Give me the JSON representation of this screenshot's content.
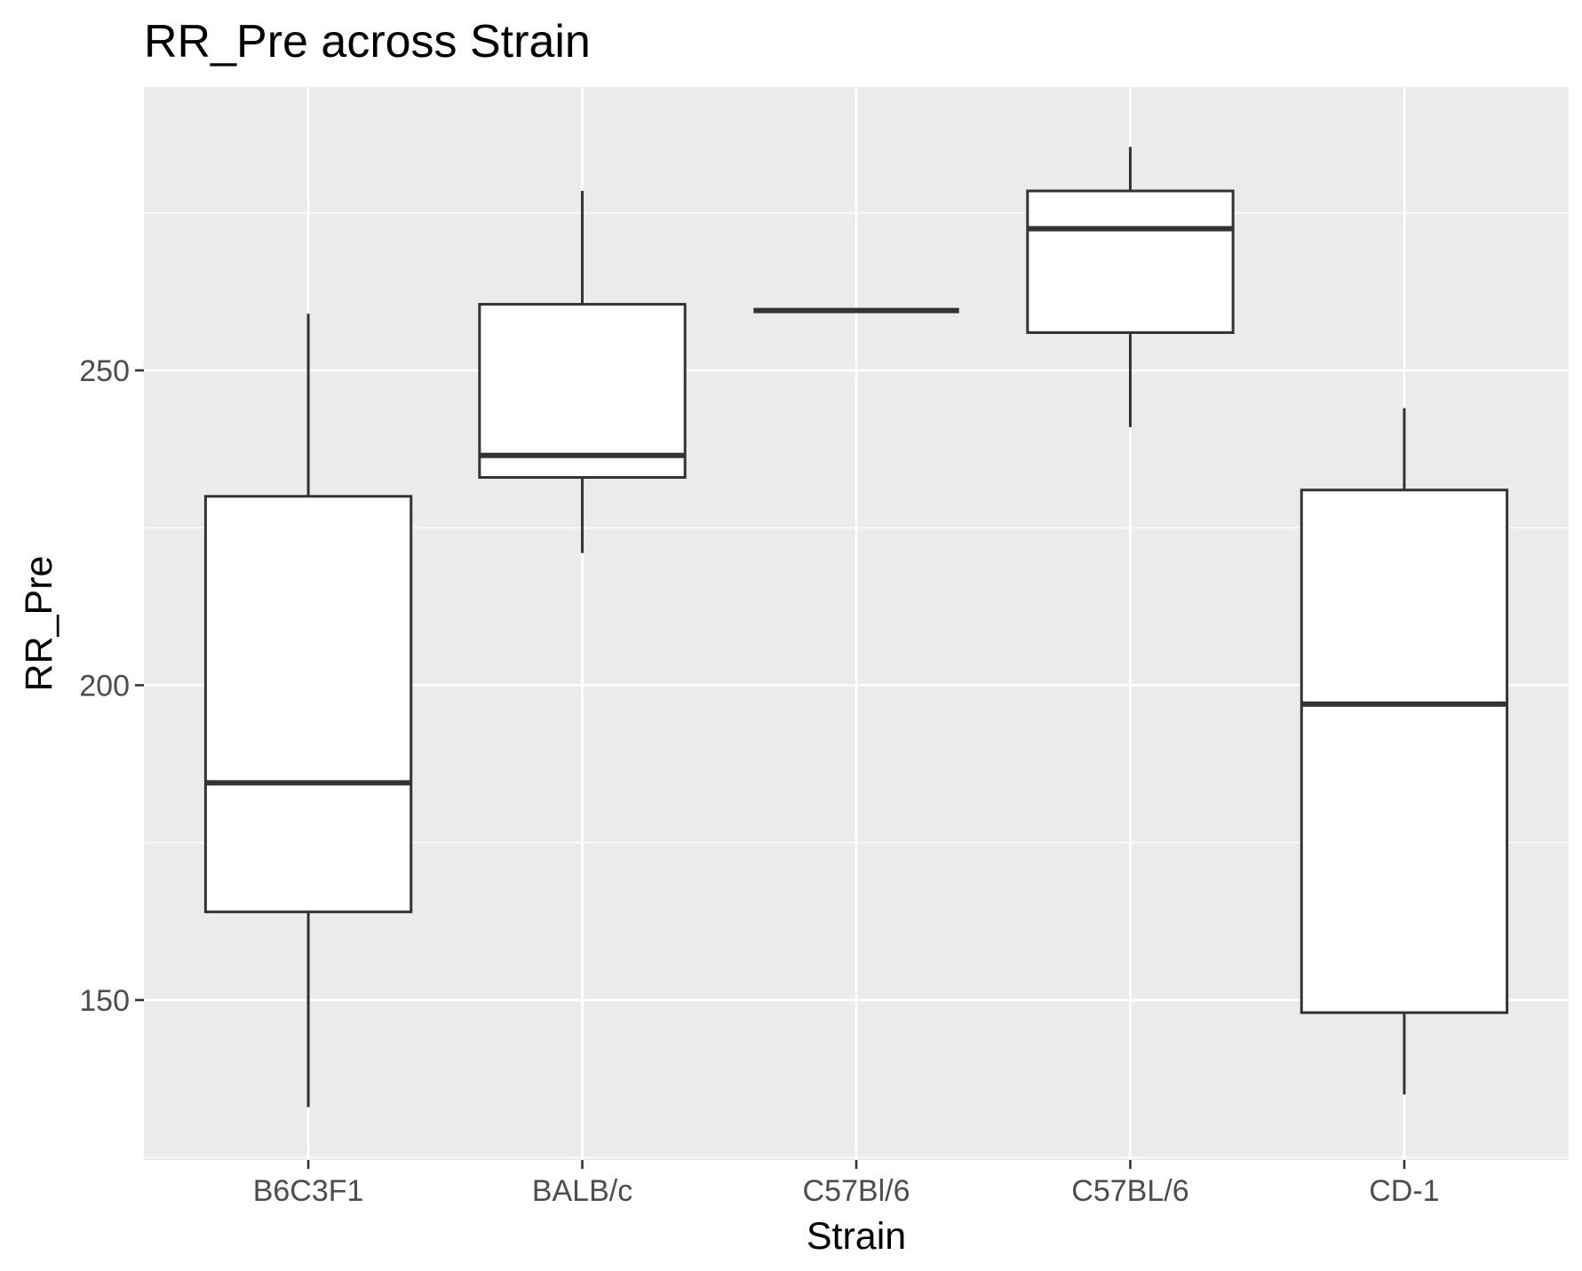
{
  "chart_data": {
    "type": "boxplot",
    "title": "RR_Pre across Strain",
    "xlabel": "Strain",
    "ylabel": "RR_Pre",
    "categories": [
      "B6C3F1",
      "BALB/c",
      "C57Bl/6",
      "C57BL/6",
      "CD-1"
    ],
    "boxes": [
      {
        "category": "B6C3F1",
        "min": 133,
        "q1": 164,
        "median": 184.5,
        "q3": 230,
        "max": 259
      },
      {
        "category": "BALB/c",
        "min": 221,
        "q1": 233,
        "median": 236.5,
        "q3": 260.5,
        "max": 278.5
      },
      {
        "category": "C57Bl/6",
        "min": 259.5,
        "q1": 259.5,
        "median": 259.5,
        "q3": 259.5,
        "max": 259.5
      },
      {
        "category": "C57BL/6",
        "min": 241,
        "q1": 256,
        "median": 272.5,
        "q3": 278.5,
        "max": 285.5
      },
      {
        "category": "CD-1",
        "min": 135,
        "q1": 148,
        "median": 197,
        "q3": 231,
        "max": 244
      }
    ],
    "yticks": [
      150,
      200,
      250
    ],
    "ytick_labels": [
      "150",
      "200",
      "250"
    ],
    "ylim": [
      124.6,
      295
    ],
    "grid": true,
    "legend": "none",
    "colors": {
      "panel_background": "#ebebeb",
      "grid": "#ffffff",
      "box_fill": "#ffffff",
      "box_stroke": "#333333",
      "tick_label": "#4d4d4d",
      "text": "#000000"
    }
  }
}
